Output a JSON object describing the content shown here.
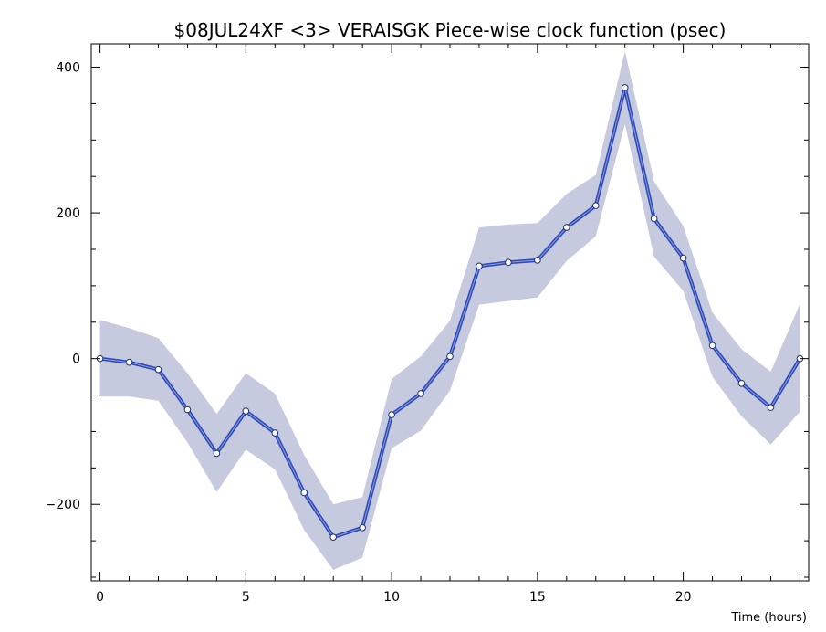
{
  "chart_data": {
    "type": "line",
    "title": "$08JUL24XF <3>   VERAISGK   Piece-wise clock function (psec)",
    "xlabel": "Time (hours)",
    "ylabel": "",
    "xlim": [
      -0.3,
      24.3
    ],
    "ylim": [
      -305,
      432
    ],
    "x_ticks": [
      0,
      5,
      10,
      15,
      20
    ],
    "x_tick_labels": [
      "0",
      "5",
      "10",
      "15",
      "20"
    ],
    "y_ticks": [
      -200,
      0,
      200,
      400
    ],
    "y_tick_labels": [
      "−200",
      "0",
      "200",
      "400"
    ],
    "grid": false,
    "legend": "none",
    "colors": {
      "line": "#2b47b8",
      "band": "#c6cadf",
      "marker_fill": "#ffffff"
    },
    "series": [
      {
        "x": [
          0,
          1,
          2,
          3,
          4,
          5,
          6,
          7,
          8,
          9,
          10,
          11,
          12,
          13,
          14,
          15,
          16,
          17,
          18,
          19,
          20,
          21,
          22,
          23,
          24
        ],
        "values": [
          0,
          -5,
          -15,
          -70,
          -130,
          -72,
          -102,
          -184,
          -245,
          -232,
          -77,
          -48,
          3,
          127,
          132,
          135,
          180,
          210,
          372,
          192,
          138,
          18,
          -34,
          -67,
          0
        ],
        "upper": [
          53,
          42,
          28,
          -20,
          -76,
          -20,
          -48,
          -132,
          -200,
          -190,
          -28,
          3,
          52,
          180,
          184,
          186,
          226,
          252,
          422,
          243,
          182,
          63,
          13,
          -18,
          75
        ],
        "lower": [
          -52,
          -52,
          -58,
          -115,
          -183,
          -125,
          -152,
          -235,
          -290,
          -273,
          -123,
          -99,
          -44,
          74,
          79,
          84,
          134,
          168,
          322,
          140,
          93,
          -25,
          -79,
          -118,
          -73
        ]
      }
    ]
  }
}
